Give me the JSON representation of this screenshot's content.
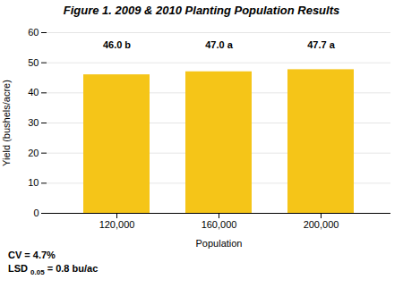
{
  "chart_data": {
    "type": "bar",
    "title": "Figure 1. 2009 & 2010 Planting Population Results",
    "categories": [
      "120,000",
      "160,000",
      "200,000"
    ],
    "values": [
      46.0,
      47.0,
      47.7
    ],
    "value_labels": [
      "46.0 b",
      "47.0 a",
      "47.7 a"
    ],
    "data_labels": true,
    "color": "#F5C518",
    "xlabel": "Population",
    "ylabel": "Yield (bushels/acre)",
    "ylim": [
      0,
      60
    ],
    "yticks": [
      0,
      10,
      20,
      30,
      40,
      50,
      60
    ],
    "grid": true,
    "annotations": [
      {
        "text": "CV = 4.7%"
      },
      {
        "text": "LSD ",
        "subscript": "0.05",
        "text_after": " = 0.8 bu/ac"
      }
    ]
  }
}
